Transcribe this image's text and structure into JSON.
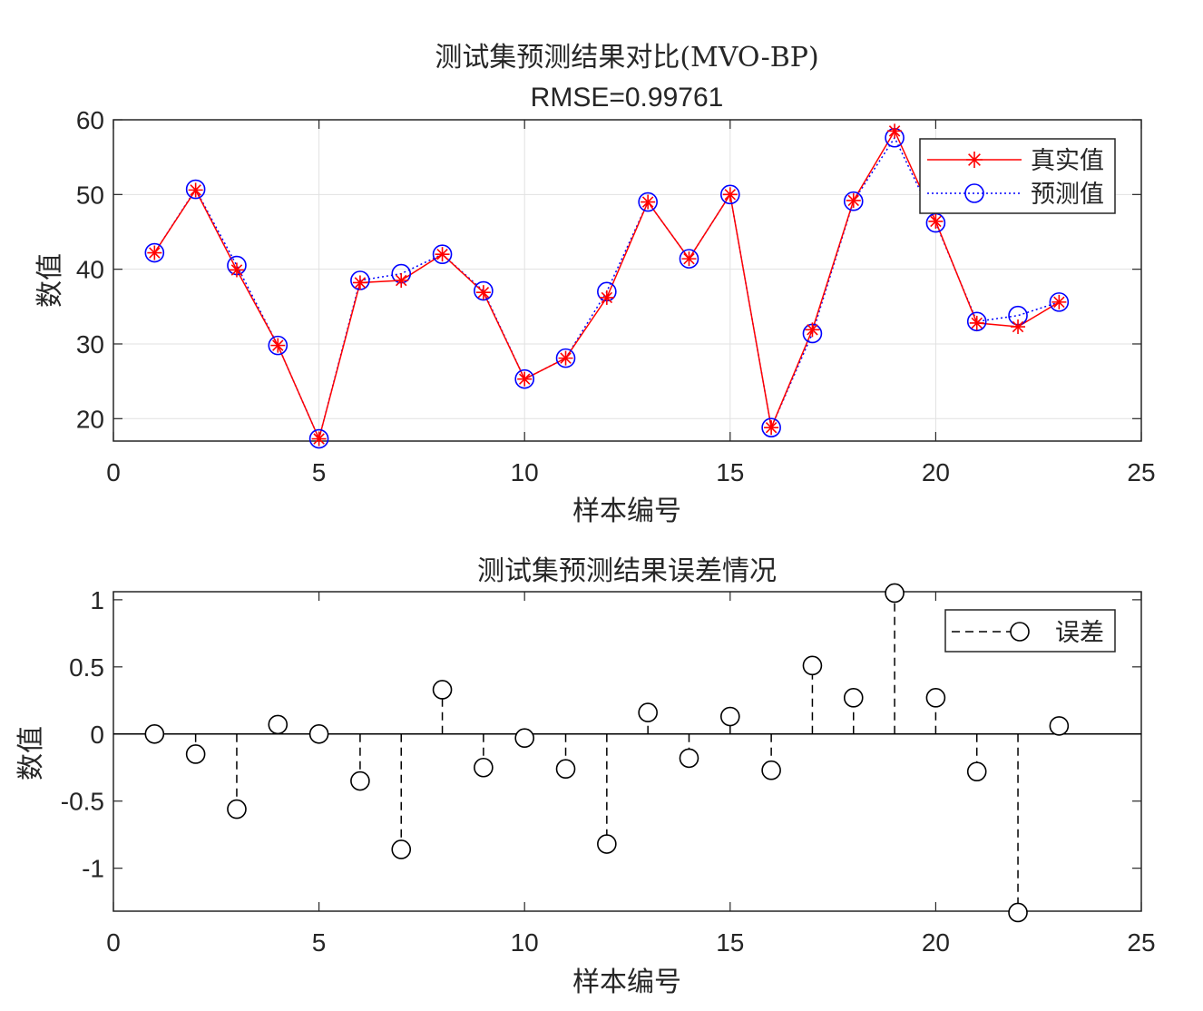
{
  "chart_data": [
    {
      "type": "line",
      "title": "测试集预测结果对比(MVO-BP)",
      "subtitle": "RMSE=0.99761",
      "xlabel": "样本编号",
      "ylabel": "数值",
      "xlim": [
        0,
        25
      ],
      "ylim": [
        17,
        60
      ],
      "xticks": [
        0,
        5,
        10,
        15,
        20,
        25
      ],
      "yticks": [
        20,
        30,
        40,
        50,
        60
      ],
      "grid": true,
      "legend_position": "top-right",
      "x": [
        1,
        2,
        3,
        4,
        5,
        6,
        7,
        8,
        9,
        10,
        11,
        12,
        13,
        14,
        15,
        16,
        17,
        18,
        19,
        20,
        21,
        22,
        23
      ],
      "series": [
        {
          "name": "真实值",
          "color": "#ff0000",
          "marker": "asterisk",
          "line": "solid",
          "values": [
            42.2,
            50.6,
            39.9,
            29.8,
            17.3,
            38.2,
            38.5,
            42.0,
            36.9,
            25.3,
            28.1,
            36.2,
            49.0,
            41.4,
            50.0,
            18.8,
            31.9,
            49.2,
            58.5,
            46.4,
            32.8,
            32.3,
            35.6
          ]
        },
        {
          "name": "预测值",
          "color": "#0000ff",
          "marker": "circle",
          "line": "dotted",
          "values": [
            42.2,
            50.7,
            40.5,
            29.8,
            17.3,
            38.5,
            39.4,
            42.0,
            37.1,
            25.3,
            28.1,
            37.0,
            49.0,
            41.4,
            50.0,
            18.8,
            31.4,
            49.1,
            57.6,
            46.2,
            33.0,
            33.8,
            35.6
          ]
        }
      ]
    },
    {
      "type": "stem",
      "title": "测试集预测结果误差情况",
      "xlabel": "样本编号",
      "ylabel": "数值",
      "xlim": [
        0,
        25
      ],
      "ylim": [
        -1.32,
        1.06
      ],
      "xticks": [
        0,
        5,
        10,
        15,
        20,
        25
      ],
      "yticks": [
        -1,
        -0.5,
        0,
        0.5,
        1
      ],
      "grid": false,
      "legend_position": "top-right",
      "x": [
        1,
        2,
        3,
        4,
        5,
        6,
        7,
        8,
        9,
        10,
        11,
        12,
        13,
        14,
        15,
        16,
        17,
        18,
        19,
        20,
        21,
        22,
        23
      ],
      "series": [
        {
          "name": "误差",
          "color": "#000000",
          "marker": "circle",
          "line": "dashed",
          "values": [
            0.0,
            -0.15,
            -0.56,
            0.07,
            0.0,
            -0.35,
            -0.86,
            0.33,
            -0.25,
            -0.03,
            -0.26,
            -0.82,
            0.16,
            -0.18,
            0.13,
            -0.27,
            0.51,
            0.27,
            1.05,
            0.27,
            -0.28,
            -1.33,
            0.06
          ]
        }
      ]
    }
  ]
}
